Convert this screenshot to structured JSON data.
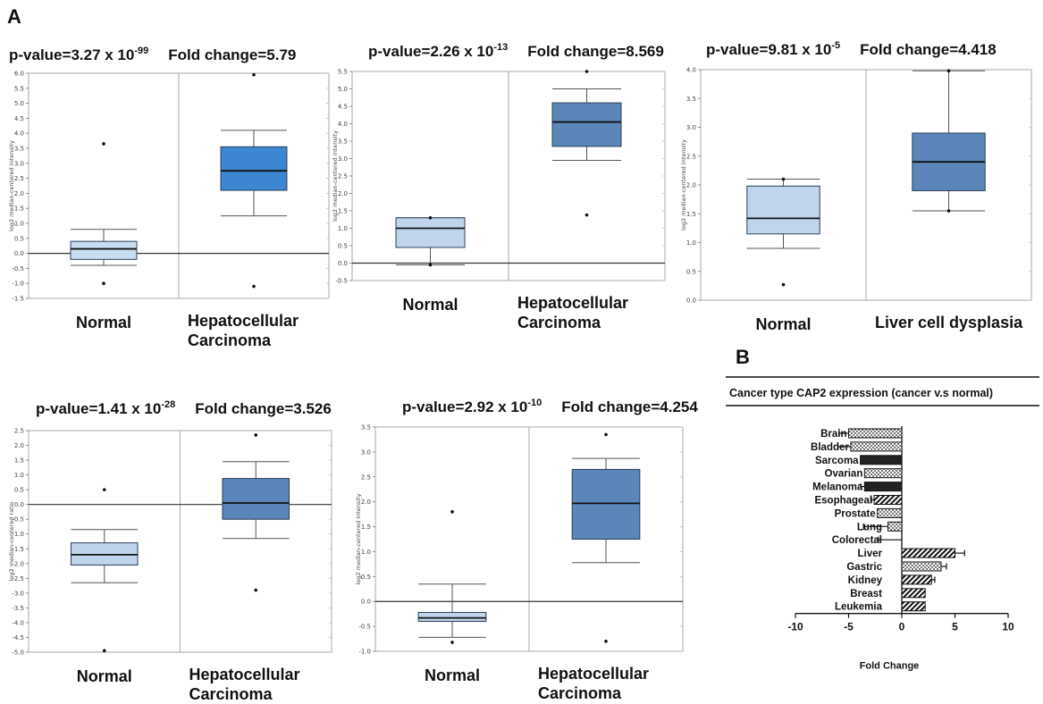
{
  "panel_letters": {
    "a": "A",
    "b": "B"
  },
  "chart_data": [
    {
      "type": "box",
      "title": {
        "p_prefix": "p-value=3.27 x 10",
        "p_exp": "-99",
        "fold": "Fold change=5.79"
      },
      "ylabel": "log2 median-centered intensity",
      "ylim": [
        -1.5,
        6.0
      ],
      "yticks": [
        "-1.5",
        "-1.0",
        "-0.5",
        "0.0",
        "0.5",
        "1.0",
        "1.5",
        "2.0",
        "2.5",
        "3.0",
        "3.5",
        "4.0",
        "4.5",
        "5.0",
        "5.5",
        "6.0"
      ],
      "baseline": 0,
      "groups": [
        {
          "label": "Normal",
          "whisker_low": -0.4,
          "q1": -0.2,
          "median": 0.15,
          "q3": 0.4,
          "whisker_high": 0.8,
          "outliers": [
            3.65,
            -1.0
          ],
          "color": "#c9ddf2"
        },
        {
          "label": "Hepatocellular\nCarcinoma",
          "whisker_low": 1.25,
          "q1": 2.1,
          "median": 2.75,
          "q3": 3.55,
          "whisker_high": 4.1,
          "outliers": [
            5.95,
            -1.1
          ],
          "color": "#3d86d1"
        }
      ]
    },
    {
      "type": "box",
      "title": {
        "p_prefix": "p-value=2.26 x 10",
        "p_exp": "-13",
        "fold": "Fold change=8.569"
      },
      "ylabel": "log2 median-centered intensity",
      "ylim": [
        -0.5,
        5.5
      ],
      "yticks": [
        "-0.5",
        "0.0",
        "0.5",
        "1.0",
        "1.5",
        "2.0",
        "2.5",
        "3.0",
        "3.5",
        "4.0",
        "4.5",
        "5.0",
        "5.5"
      ],
      "baseline": 0,
      "groups": [
        {
          "label": "Normal",
          "whisker_low": -0.05,
          "q1": 0.45,
          "median": 1.0,
          "q3": 1.3,
          "whisker_high": 1.3,
          "outliers": [
            1.3,
            -0.05
          ],
          "color": "#c0d5ec"
        },
        {
          "label": "Hepatocellular\nCarcinoma",
          "whisker_low": 2.95,
          "q1": 3.35,
          "median": 4.05,
          "q3": 4.6,
          "whisker_high": 5.0,
          "outliers": [
            5.5,
            1.38
          ],
          "color": "#5a86ba"
        }
      ]
    },
    {
      "type": "box",
      "title": {
        "p_prefix": "p-value=9.81 x 10",
        "p_exp": "-5",
        "fold": "Fold change=4.418"
      },
      "ylabel": "log2 median-centered intensity",
      "ylim": [
        0.0,
        4.0
      ],
      "yticks": [
        "0.0",
        "0.5",
        "1.0",
        "1.5",
        "2.0",
        "2.5",
        "3.0",
        "3.5",
        "4.0"
      ],
      "baseline": null,
      "groups": [
        {
          "label": "Normal",
          "whisker_low": 0.9,
          "q1": 1.15,
          "median": 1.42,
          "q3": 1.98,
          "whisker_high": 2.1,
          "outliers": [
            2.1,
            0.27
          ],
          "color": "#c0d5ec"
        },
        {
          "label": "Liver cell dysplasia",
          "whisker_low": 1.55,
          "q1": 1.9,
          "median": 2.4,
          "q3": 2.9,
          "whisker_high": 3.98,
          "outliers": [
            3.98,
            1.55
          ],
          "color": "#5a86ba"
        }
      ]
    },
    {
      "type": "box",
      "title": {
        "p_prefix": "p-value=1.41 x 10",
        "p_exp": "-28",
        "fold": "Fold change=3.526"
      },
      "ylabel": "log2 median-centered ratio",
      "ylim": [
        -5.0,
        2.5
      ],
      "yticks": [
        "-5.0",
        "-4.5",
        "-4.0",
        "-3.5",
        "-3.0",
        "-2.5",
        "-2.0",
        "-1.5",
        "-1.0",
        "-0.5",
        "0.0",
        "0.5",
        "1.0",
        "1.5",
        "2.0",
        "2.5"
      ],
      "baseline": 0,
      "groups": [
        {
          "label": "Normal",
          "whisker_low": -2.65,
          "q1": -2.05,
          "median": -1.7,
          "q3": -1.3,
          "whisker_high": -0.85,
          "outliers": [
            0.5,
            -4.95
          ],
          "color": "#c0d5ec"
        },
        {
          "label": "Hepatocellular\nCarcinoma",
          "whisker_low": -1.15,
          "q1": -0.5,
          "median": 0.05,
          "q3": 0.88,
          "whisker_high": 1.45,
          "outliers": [
            2.35,
            -2.9
          ],
          "color": "#5a86ba"
        }
      ]
    },
    {
      "type": "box",
      "title": {
        "p_prefix": "p-value=2.92 x 10",
        "p_exp": "-10",
        "fold": "Fold change=4.254"
      },
      "ylabel": "log2 median-centered intensity",
      "ylim": [
        -1.0,
        3.5
      ],
      "yticks": [
        "-1.0",
        "-0.5",
        "0.0",
        "0.5",
        "1.0",
        "1.5",
        "2.0",
        "2.5",
        "3.0",
        "3.5"
      ],
      "baseline": 0,
      "groups": [
        {
          "label": "Normal",
          "whisker_low": -0.72,
          "q1": -0.4,
          "median": -0.33,
          "q3": -0.22,
          "whisker_high": 0.35,
          "outliers": [
            1.8,
            -0.82
          ],
          "color": "#c0d5ec"
        },
        {
          "label": "Hepatocellular\nCarcinoma",
          "whisker_low": 0.78,
          "q1": 1.25,
          "median": 1.97,
          "q3": 2.65,
          "whisker_high": 2.87,
          "outliers": [
            3.35,
            -0.8
          ],
          "color": "#5a86ba"
        }
      ]
    },
    {
      "type": "bar",
      "orientation": "horizontal",
      "header": "Cancer type  CAP2 expression (cancer v.s normal)",
      "categories": [
        "Brain",
        "Bladder",
        "Sarcoma",
        "Ovarian",
        "Melanoma",
        "Esophageal",
        "Prostate",
        "Lung",
        "Colorectal",
        "Liver",
        "Gastric",
        "Kidney",
        "Breast",
        "Leukemia"
      ],
      "values": [
        -5.0,
        -4.8,
        -3.9,
        -3.5,
        -3.5,
        -2.6,
        -2.3,
        -1.3,
        0,
        5.0,
        3.7,
        2.8,
        2.2,
        2.2
      ],
      "errors": [
        0.9,
        1.2,
        0,
        0,
        0.35,
        0.25,
        0,
        2.3,
        2.2,
        0.9,
        0.5,
        0.3,
        0,
        0
      ],
      "patterns": [
        "dots",
        "dots",
        "solid",
        "dots",
        "solid",
        "hatch",
        "dots",
        "dots",
        "none",
        "hatch",
        "dots",
        "hatch",
        "hatch",
        "hatch"
      ],
      "xlim": [
        -10,
        10
      ],
      "xticks": [
        "-10",
        "-5",
        "0",
        "5",
        "10"
      ],
      "xlabel": "Fold Change"
    }
  ]
}
